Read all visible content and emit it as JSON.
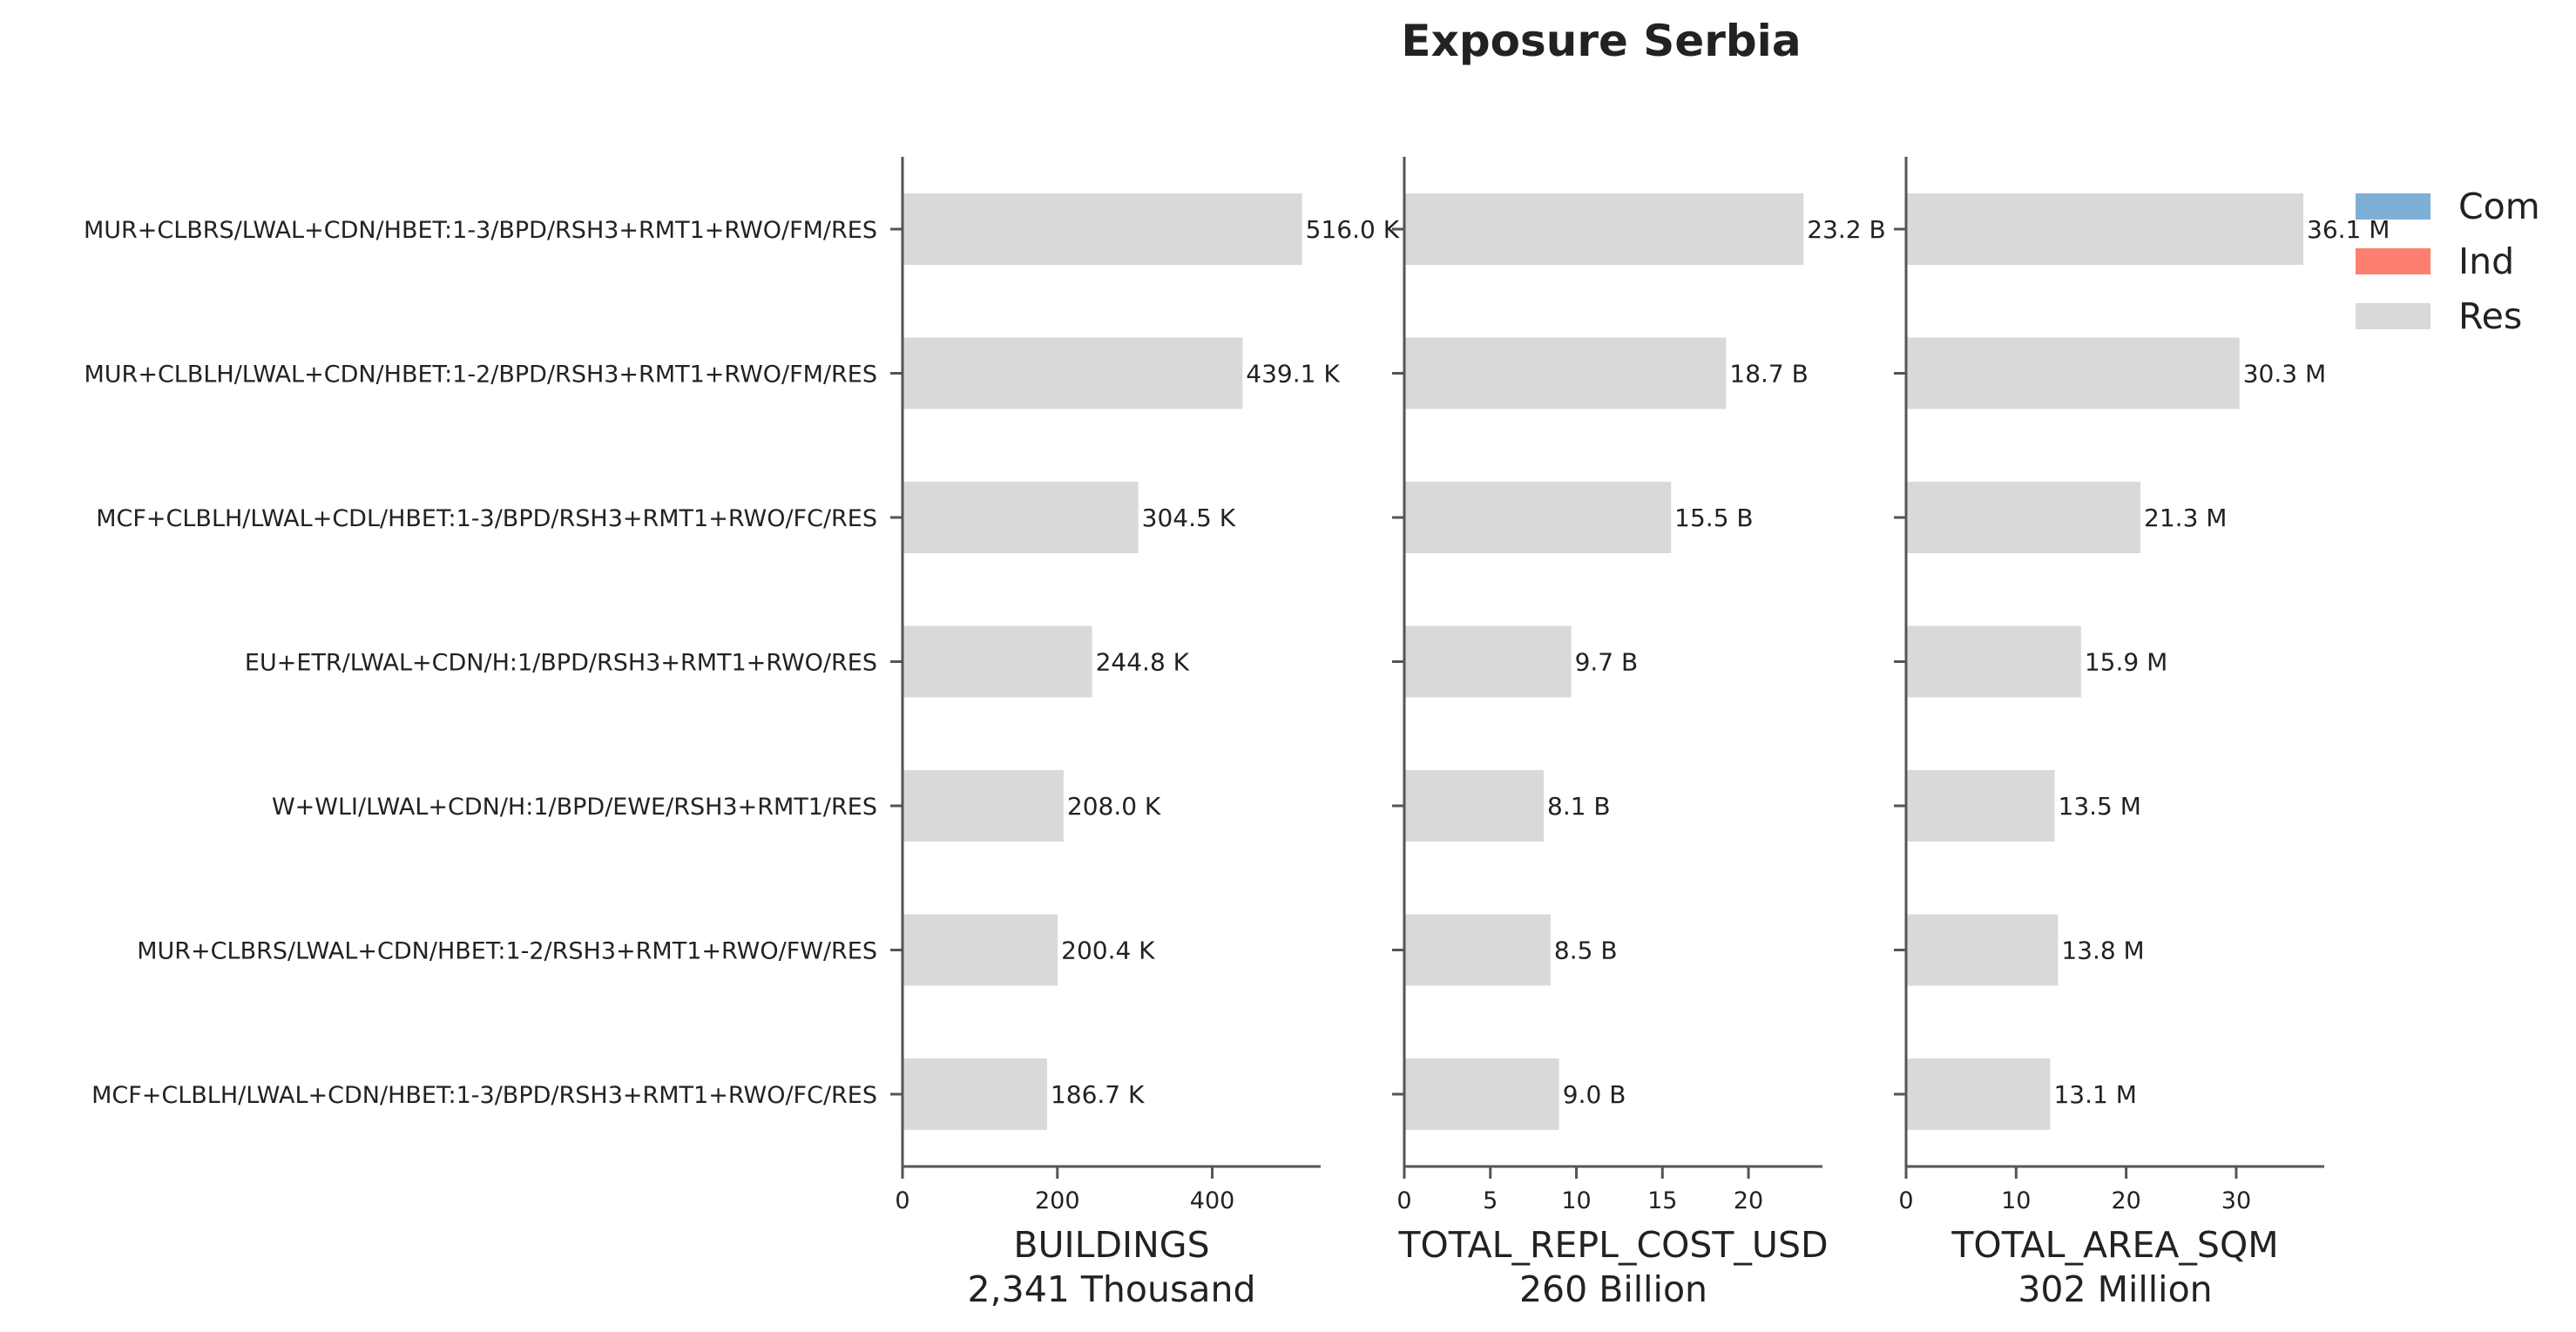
{
  "chart_data": {
    "type": "bar",
    "orientation": "horizontal",
    "title": "Exposure Serbia",
    "categories": [
      "MUR+CLBRS/LWAL+CDN/HBET:1-3/BPD/RSH3+RMT1+RWO/FM/RES",
      "MUR+CLBLH/LWAL+CDN/HBET:1-2/BPD/RSH3+RMT1+RWO/FM/RES",
      "MCF+CLBLH/LWAL+CDL/HBET:1-3/BPD/RSH3+RMT1+RWO/FC/RES",
      "EU+ETR/LWAL+CDN/H:1/BPD/RSH3+RMT1+RWO/RES",
      "W+WLI/LWAL+CDN/H:1/BPD/EWE/RSH3+RMT1/RES",
      "MUR+CLBRS/LWAL+CDN/HBET:1-2/RSH3+RMT1+RWO/FW/RES",
      "MCF+CLBLH/LWAL+CDN/HBET:1-3/BPD/RSH3+RMT1+RWO/FC/RES"
    ],
    "legend": {
      "placement": "top-right",
      "entries": [
        {
          "label": "Com",
          "color": "#7eb0d5"
        },
        {
          "label": "Ind",
          "color": "#fd7f6f"
        },
        {
          "label": "Res",
          "color": "#d9d9d9"
        }
      ]
    },
    "panels": [
      {
        "xlabel": "BUILDINGS",
        "subtitle": "2,341 Thousand",
        "xlim": [
          0,
          540
        ],
        "ticks": [
          0,
          200,
          400
        ],
        "tick_labels": [
          "0",
          "200",
          "400"
        ],
        "series": [
          {
            "name": "Res",
            "color": "#d9d9d9",
            "values": [
              516.0,
              439.1,
              304.5,
              244.8,
              208.0,
              200.4,
              186.7
            ]
          }
        ],
        "data_labels": [
          "516.0 K",
          "439.1 K",
          "304.5 K",
          "244.8 K",
          "208.0 K",
          "200.4 K",
          "186.7 K"
        ]
      },
      {
        "xlabel": "TOTAL_REPL_COST_USD",
        "subtitle": "260 Billion",
        "xlim": [
          0,
          24.3
        ],
        "ticks": [
          0,
          5,
          10,
          15,
          20
        ],
        "tick_labels": [
          "0",
          "5",
          "10",
          "15",
          "20"
        ],
        "series": [
          {
            "name": "Res",
            "color": "#d9d9d9",
            "values": [
              23.2,
              18.7,
              15.5,
              9.7,
              8.1,
              8.5,
              9.0
            ]
          }
        ],
        "data_labels": [
          "23.2 B",
          "18.7 B",
          "15.5 B",
          "9.7 B",
          "8.1 B",
          "8.5 B",
          "9.0 B"
        ]
      },
      {
        "xlabel": "TOTAL_AREA_SQM",
        "subtitle": "302 Million",
        "xlim": [
          0,
          38
        ],
        "ticks": [
          0,
          10,
          20,
          30
        ],
        "tick_labels": [
          "0",
          "10",
          "20",
          "30"
        ],
        "series": [
          {
            "name": "Res",
            "color": "#d9d9d9",
            "values": [
              36.1,
              30.3,
              21.3,
              15.9,
              13.5,
              13.8,
              13.1
            ]
          }
        ],
        "data_labels": [
          "36.1 M",
          "30.3 M",
          "21.3 M",
          "15.9 M",
          "13.5 M",
          "13.8 M",
          "13.1 M"
        ]
      }
    ]
  }
}
